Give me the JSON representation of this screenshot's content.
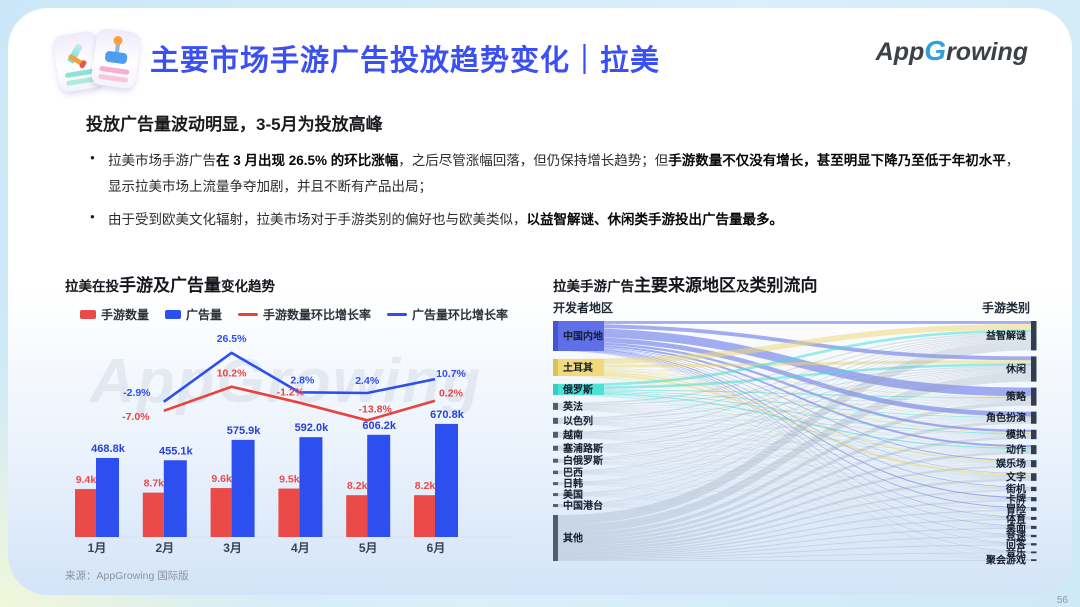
{
  "header": {
    "title": "主要市场手游广告投放趋势变化｜拉美",
    "logo": {
      "app": "App",
      "g": "G",
      "rowing": "rowing"
    }
  },
  "summary": {
    "headline": "投放广告量波动明显，3-5月为投放高峰",
    "bullets": [
      {
        "segments": [
          {
            "t": "拉美市场手游广告",
            "b": false
          },
          {
            "t": "在 3 月出现 26.5% 的环比涨幅",
            "b": true
          },
          {
            "t": "，之后尽管涨幅回落，但仍保持增长趋势；但",
            "b": false
          },
          {
            "t": "手游数量不仅没有增长，甚至明显下降乃至低于年初水平",
            "b": true
          },
          {
            "t": "，显示拉美市场上流量争夺加剧，并且不断有产品出局；",
            "b": false
          }
        ]
      },
      {
        "segments": [
          {
            "t": "由于受到欧美文化辐射，拉美市场对于手游类别的偏好也与欧美类似，",
            "b": false
          },
          {
            "t": "以益智解谜、休闲类手游投出广告量最多。",
            "b": true
          }
        ]
      }
    ]
  },
  "left_panel": {
    "title_segments": [
      {
        "t": "拉美在投",
        "b": false
      },
      {
        "t": "手游及广告量",
        "b": true
      },
      {
        "t": "变化趋势",
        "b": false
      }
    ],
    "source": "来源：AppGrowing 国际版",
    "watermark": "AppGrowing"
  },
  "right_panel": {
    "title_segments": [
      {
        "t": "拉美手游广告",
        "b": false
      },
      {
        "t": "主要来源地区",
        "b": true
      },
      {
        "t": "及",
        "b": false
      },
      {
        "t": "类别流向",
        "b": true
      }
    ]
  },
  "page": {
    "number": "56"
  },
  "chart_data": [
    {
      "type": "bar",
      "title": "拉美在投手游及广告量变化趋势",
      "categories": [
        "1月",
        "2月",
        "3月",
        "4月",
        "5月",
        "6月"
      ],
      "series": [
        {
          "name": "手游数量",
          "kind": "bar",
          "color": "#ea4b49",
          "values": [
            9.4,
            8.7,
            9.6,
            9.5,
            8.2,
            8.2
          ],
          "unit": "k",
          "labels": [
            "9.4k",
            "8.7k",
            "9.6k",
            "9.5k",
            "8.2k",
            "8.2k"
          ]
        },
        {
          "name": "广告量",
          "kind": "bar",
          "color": "#2d4ff0",
          "values": [
            468.8,
            455.1,
            575.9,
            592.0,
            606.2,
            670.8
          ],
          "unit": "k",
          "labels": [
            "468.8k",
            "455.1k",
            "575.9k",
            "592.0k",
            "606.2k",
            "670.8k"
          ]
        },
        {
          "name": "手游数量环比增长率",
          "kind": "line",
          "color": "#e8433f",
          "values": [
            null,
            -7.0,
            10.2,
            -1.2,
            -13.8,
            0.2
          ],
          "unit": "%",
          "labels": [
            null,
            "-7.0%",
            "10.2%",
            "-1.2%",
            "-13.8%",
            "0.2%"
          ]
        },
        {
          "name": "广告量环比增长率",
          "kind": "line",
          "color": "#2d4ff0",
          "values": [
            null,
            -2.9,
            26.5,
            2.8,
            2.4,
            10.7
          ],
          "unit": "%",
          "labels": [
            null,
            "-2.9%",
            "26.5%",
            "2.8%",
            "2.4%",
            "10.7%"
          ]
        }
      ],
      "legend_position": "top",
      "grid": false
    },
    {
      "type": "sankey",
      "title": "拉美手游广告主要来源地区及类别流向",
      "left_header": "开发者地区",
      "right_header": "手游类别",
      "left_nodes": [
        {
          "label": "中国内地",
          "size": 30,
          "color": "#5b6ce6",
          "bar": "#4356cf",
          "dist": {
            "0": 3,
            "1": 4,
            "2": 9,
            "3": 5,
            "4": 2.5,
            "5": 2,
            "6": 0.8,
            "7": 0.4,
            "8": 0.6,
            "9": 1.2,
            "10": 0.8,
            "11": 0.5,
            "12": 0.4,
            "13": 0.3,
            "14": 0.2,
            "15": 0.2,
            "16": 0.1
          }
        },
        {
          "label": "土耳其",
          "size": 17,
          "color": "#eed97a",
          "bar": "#dfc257",
          "dist": {
            "0": 6,
            "1": 3.2,
            "2": 0.8,
            "3": 0.5,
            "4": 0.9,
            "5": 0.5,
            "6": 1.6,
            "7": 2.6,
            "8": 0.5,
            "9": 0.2,
            "10": 0.2,
            "11": 0.2,
            "12": 0.3,
            "13": 0.1,
            "14": 0.2,
            "15": 0.1,
            "16": 0.1
          }
        },
        {
          "label": "俄罗斯",
          "size": 11,
          "color": "#49dfd4",
          "bar": "#35cdc2",
          "dist": {
            "0": 2.8,
            "1": 2.6,
            "2": 1.1,
            "3": 0.8,
            "4": 0.9,
            "5": 1.4,
            "6": 0.3,
            "7": 0.3,
            "8": 0.2,
            "9": 0.2,
            "10": 0.1,
            "11": 0.1,
            "12": 0.1,
            "13": 0.05,
            "14": 0.05,
            "15": 0.05,
            "16": 0.05
          }
        },
        {
          "label": "英法",
          "size": 7
        },
        {
          "label": "以色列",
          "size": 6
        },
        {
          "label": "越南",
          "size": 6
        },
        {
          "label": "塞浦路斯",
          "size": 5
        },
        {
          "label": "白俄罗斯",
          "size": 4
        },
        {
          "label": "巴西",
          "size": 3.5
        },
        {
          "label": "日韩",
          "size": 3
        },
        {
          "label": "美国",
          "size": 3
        },
        {
          "label": "中国港台",
          "size": 3
        },
        {
          "label": "其他",
          "size": 46
        }
      ],
      "right_nodes": [
        {
          "label": "益智解谜",
          "size": 24
        },
        {
          "label": "休闲",
          "size": 21
        },
        {
          "label": "策略",
          "size": 10
        },
        {
          "label": "角色扮演",
          "size": 8
        },
        {
          "label": "模拟",
          "size": 7
        },
        {
          "label": "动作",
          "size": 7
        },
        {
          "label": "娱乐场",
          "size": 6
        },
        {
          "label": "文字",
          "size": 6
        },
        {
          "label": "街机",
          "size": 4
        },
        {
          "label": "卡牌",
          "size": 3.5
        },
        {
          "label": "冒险",
          "size": 3.5
        },
        {
          "label": "体育",
          "size": 3
        },
        {
          "label": "桌面",
          "size": 3
        },
        {
          "label": "竞速",
          "size": 2.5
        },
        {
          "label": "问答",
          "size": 2.5
        },
        {
          "label": "音乐",
          "size": 2
        },
        {
          "label": "聚会游戏",
          "size": 2
        }
      ],
      "colors": {
        "gray_flow": "#8fa0b5",
        "gray_bar": "#515d6f",
        "right_bar": "#333d52"
      }
    }
  ]
}
